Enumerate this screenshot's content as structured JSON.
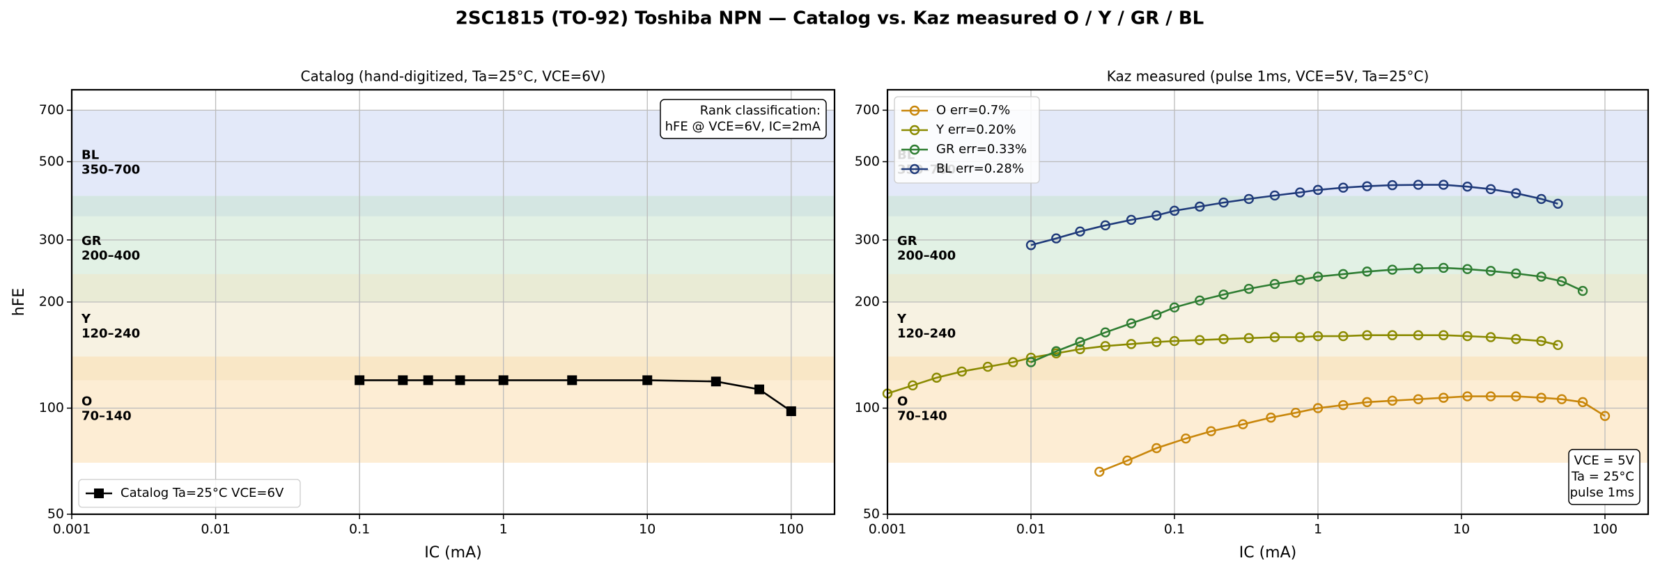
{
  "title": "2SC1815 (TO-92)  Toshiba  NPN  —  Catalog vs. Kaz measured  O / Y / GR / BL",
  "chart_data": [
    {
      "type": "line",
      "title": "Catalog  (hand-digitized,  Ta=25°C,  VCE=6V)",
      "xlabel": "IC (mA)",
      "ylabel": "hFE",
      "log_x": true,
      "log_y": true,
      "grid": true,
      "xlim": [
        0.001,
        200
      ],
      "ylim": [
        50,
        800
      ],
      "xticks": [
        0.001,
        0.01,
        0.1,
        1,
        10,
        100
      ],
      "yticks": [
        50,
        100,
        200,
        300,
        500,
        700
      ],
      "bands": [
        {
          "name": "BL",
          "label": "350–700",
          "range": [
            350,
            700
          ],
          "color": "#c7d3f3",
          "text_color": "#1f3a7a"
        },
        {
          "name": "GR",
          "label": "200–400",
          "range": [
            200,
            400
          ],
          "color": "#c6e4cc",
          "text_color": "#2e7d32"
        },
        {
          "name": "Y",
          "label": "120–240",
          "range": [
            120,
            240
          ],
          "color": "#efe6c6",
          "text_color": "#8a8a00"
        },
        {
          "name": "O",
          "label": "70–140",
          "range": [
            70,
            140
          ],
          "color": "#fbdcaa",
          "text_color": "#c8860a"
        }
      ],
      "legend": "lower left",
      "annotation": {
        "corner": "upper right",
        "lines": [
          "Rank classification:",
          "hFE @ VCE=6V,  IC=2mA"
        ]
      },
      "series": [
        {
          "name": "Catalog  Ta=25°C  VCE=6V",
          "color": "#000000",
          "marker": "square",
          "x": [
            0.1,
            0.2,
            0.3,
            0.5,
            1,
            3,
            10,
            30,
            60,
            100
          ],
          "values": [
            120,
            120,
            120,
            120,
            120,
            120,
            120,
            119,
            113,
            98
          ]
        }
      ]
    },
    {
      "type": "line",
      "title": "Kaz measured  (pulse 1ms,  VCE=5V,  Ta=25°C)",
      "xlabel": "IC (mA)",
      "log_x": true,
      "log_y": true,
      "grid": true,
      "xlim": [
        0.001,
        200
      ],
      "ylim": [
        50,
        800
      ],
      "xticks": [
        0.001,
        0.01,
        0.1,
        1,
        10,
        100
      ],
      "yticks": [
        50,
        100,
        200,
        300,
        500,
        700
      ],
      "bands": [
        {
          "name": "BL",
          "label": "350–700",
          "range": [
            350,
            700
          ],
          "color": "#c7d3f3",
          "text_color": "#1f3a7a"
        },
        {
          "name": "GR",
          "label": "200–400",
          "range": [
            200,
            400
          ],
          "color": "#c6e4cc",
          "text_color": "#2e7d32"
        },
        {
          "name": "Y",
          "label": "120–240",
          "range": [
            120,
            240
          ],
          "color": "#efe6c6",
          "text_color": "#8a8a00"
        },
        {
          "name": "O",
          "label": "70–140",
          "range": [
            70,
            140
          ],
          "color": "#fbdcaa",
          "text_color": "#c8860a"
        }
      ],
      "legend": "upper left",
      "annotation": {
        "corner": "lower right",
        "lines": [
          "VCE = 5V",
          "Ta = 25°C",
          "pulse 1ms"
        ]
      },
      "series": [
        {
          "name": "O   err=0.7%",
          "color": "#c8860a",
          "marker": "circle",
          "x": [
            0.03,
            0.047,
            0.075,
            0.12,
            0.18,
            0.3,
            0.47,
            0.7,
            1,
            1.5,
            2.2,
            3.3,
            5,
            7.5,
            11,
            16,
            24,
            36,
            50,
            70,
            100
          ],
          "values": [
            66,
            71,
            77,
            82,
            86,
            90,
            94,
            97,
            100,
            102,
            104,
            105,
            106,
            107,
            108,
            108,
            108,
            107,
            106,
            104,
            95
          ]
        },
        {
          "name": "Y   err=0.20%",
          "color": "#8a8a00",
          "marker": "circle",
          "x": [
            0.001,
            0.0015,
            0.0022,
            0.0033,
            0.005,
            0.0075,
            0.01,
            0.015,
            0.022,
            0.033,
            0.05,
            0.075,
            0.1,
            0.15,
            0.22,
            0.33,
            0.5,
            0.75,
            1,
            1.5,
            2.2,
            3.3,
            5,
            7.5,
            11,
            16,
            24,
            36,
            47
          ],
          "values": [
            110,
            116,
            122,
            127,
            131,
            135,
            139,
            143,
            147,
            150,
            152,
            154,
            155,
            156,
            157,
            158,
            159,
            159,
            160,
            160,
            161,
            161,
            161,
            161,
            160,
            159,
            157,
            155,
            151
          ]
        },
        {
          "name": "GR  err=0.33%",
          "color": "#2e7d32",
          "marker": "circle",
          "x": [
            0.01,
            0.015,
            0.022,
            0.033,
            0.05,
            0.075,
            0.1,
            0.15,
            0.22,
            0.33,
            0.5,
            0.75,
            1,
            1.5,
            2.2,
            3.3,
            5,
            7.5,
            11,
            16,
            24,
            36,
            50,
            70
          ],
          "values": [
            135,
            145,
            154,
            164,
            174,
            184,
            193,
            202,
            210,
            218,
            225,
            231,
            236,
            240,
            244,
            247,
            249,
            250,
            248,
            245,
            241,
            236,
            229,
            215
          ]
        },
        {
          "name": "BL  err=0.28%",
          "color": "#1f3a7a",
          "marker": "circle",
          "x": [
            0.01,
            0.015,
            0.022,
            0.033,
            0.05,
            0.075,
            0.1,
            0.15,
            0.22,
            0.33,
            0.5,
            0.75,
            1,
            1.5,
            2.2,
            3.3,
            5,
            7.5,
            11,
            16,
            24,
            36,
            47
          ],
          "values": [
            290,
            303,
            317,
            330,
            342,
            352,
            363,
            373,
            383,
            392,
            401,
            409,
            416,
            422,
            426,
            429,
            430,
            430,
            425,
            418,
            407,
            392,
            380
          ]
        }
      ]
    }
  ]
}
